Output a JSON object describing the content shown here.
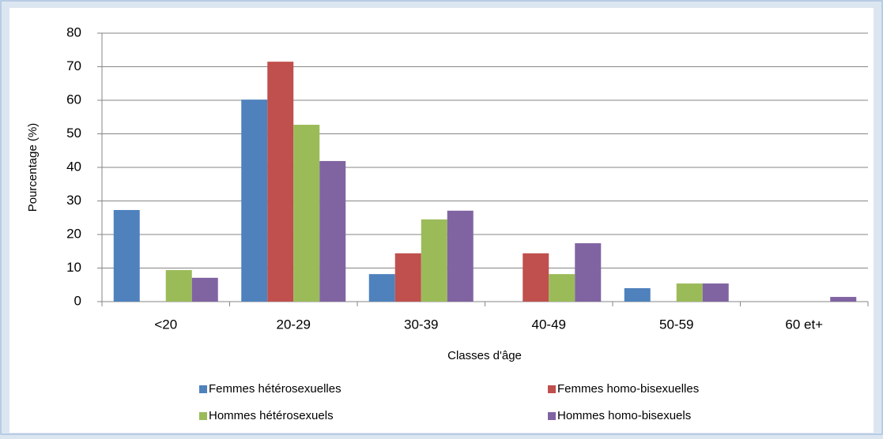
{
  "chart_data": {
    "type": "bar",
    "y_label": "Pourcentage (%)",
    "x_label": "Classes d'âge",
    "categories": [
      "<20",
      "20-29",
      "30-39",
      "40-49",
      "50-59",
      "60 et+"
    ],
    "series": [
      {
        "name": "Femmes hétérosexuelles",
        "color": "#4f81bd",
        "values": [
          27.3,
          60.2,
          8.2,
          0,
          4.0,
          0
        ]
      },
      {
        "name": "Femmes homo-bisexuelles",
        "color": "#c0504d",
        "values": [
          0,
          71.5,
          14.4,
          14.4,
          0,
          0
        ]
      },
      {
        "name": "Hommes hétérosexuels",
        "color": "#9bbb59",
        "values": [
          9.4,
          52.7,
          24.5,
          8.2,
          5.4,
          0
        ]
      },
      {
        "name": "Hommes homo-bisexuels",
        "color": "#8064a2",
        "values": [
          7.1,
          41.9,
          27.1,
          17.4,
          5.4,
          1.4
        ]
      }
    ],
    "ylim": [
      0,
      80
    ],
    "yticks": [
      0,
      10,
      20,
      30,
      40,
      50,
      60,
      70,
      80
    ],
    "grid": true
  }
}
